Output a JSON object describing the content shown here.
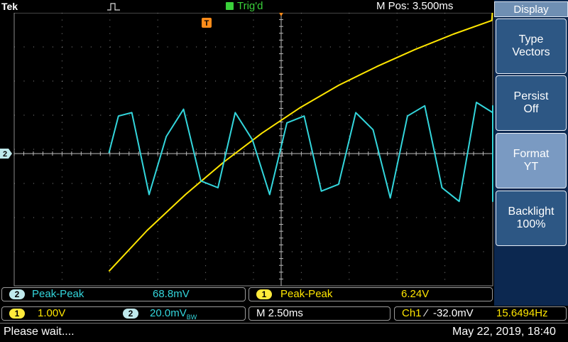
{
  "topbar": {
    "brand": "Tek",
    "trigger_state": "Trig'd",
    "m_pos": "M Pos: 3.500ms",
    "trigger_marker": "T"
  },
  "side_menu": {
    "title": "Display",
    "buttons": [
      {
        "line1": "Type",
        "line2": "Vectors",
        "active": false
      },
      {
        "line1": "Persist",
        "line2": "Off",
        "active": false
      },
      {
        "line1": "Format",
        "line2": "YT",
        "active": true
      },
      {
        "line1": "Backlight",
        "line2": "100%",
        "active": false
      }
    ]
  },
  "measurements": {
    "ch2": {
      "badge": "2",
      "name": "Peak-Peak",
      "value": "68.8mV"
    },
    "ch1": {
      "badge": "1",
      "name": "Peak-Peak",
      "value": "6.24V"
    }
  },
  "settings": {
    "ch1": {
      "badge": "1",
      "scale": "1.00V"
    },
    "ch2": {
      "badge": "2",
      "scale": "20.0mV",
      "suffix": "BW"
    },
    "timebase": "M 2.50ms",
    "trigger": {
      "source": "Ch1",
      "slope": "⁄",
      "level": "-32.0mV",
      "freq": "15.6494Hz"
    }
  },
  "status": {
    "message": "Please wait....",
    "datetime": "May 22, 2019, 18:40"
  },
  "colors": {
    "ch1": "#ffe600",
    "ch2": "#33d6dc",
    "trigger": "#ff8c1a",
    "grid": "#8a8a8a",
    "menu_bg": "#0c2850"
  },
  "chart_data": {
    "type": "line",
    "xlabel": "",
    "ylabel": "",
    "grid": true,
    "xlim": [
      -9,
      19
    ],
    "series": [
      {
        "name": "",
        "channel": 1,
        "x": [
          -9,
          -7,
          -5,
          -3,
          -1,
          1,
          3,
          5,
          7,
          9,
          11,
          13,
          15,
          17,
          19
        ],
        "y": [
          -3.45,
          -2.25,
          -1.2,
          -0.25,
          0.6,
          1.35,
          2.0,
          2.55,
          3.05,
          3.5,
          3.9,
          4.25,
          4.55,
          4.8,
          5.0
        ]
      },
      {
        "name": "",
        "channel": 2,
        "x": [
          -9,
          -8.5,
          -7.8,
          -6.9,
          -6.0,
          -5.1,
          -4.2,
          -3.3,
          -2.4,
          -1.5,
          -0.6,
          0.3,
          1.2,
          2.1,
          3.0,
          3.9,
          4.8,
          5.7,
          6.6,
          7.5,
          8.4,
          9.3,
          10.2,
          11.1,
          12.0,
          12.9,
          13.8,
          14.7,
          15.6,
          16.5,
          17.4,
          18.3,
          19.0
        ],
        "y": [
          0.3,
          22,
          24,
          -24,
          10,
          26,
          -16,
          -20,
          24,
          8,
          -24,
          18,
          22,
          -22,
          -18,
          24,
          14,
          -26,
          22,
          28,
          -20,
          -28,
          30,
          24,
          -24,
          -28,
          28,
          22,
          -26,
          -24,
          26,
          20,
          12
        ]
      }
    ]
  }
}
